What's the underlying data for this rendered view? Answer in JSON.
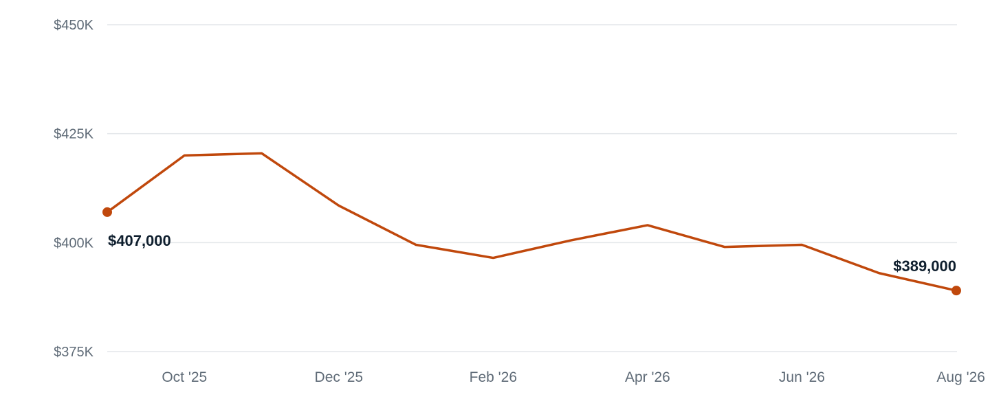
{
  "chart_data": {
    "type": "line",
    "x": [
      "Sep '25",
      "Oct '25",
      "Nov '25",
      "Dec '25",
      "Jan '26",
      "Feb '26",
      "Mar '26",
      "Apr '26",
      "May '26",
      "Jun '26",
      "Jul '26",
      "Aug '26"
    ],
    "x_tick_labels": [
      "Oct '25",
      "Dec '25",
      "Feb '26",
      "Apr '26",
      "Jun '26",
      "Aug '26"
    ],
    "series": [
      {
        "color": "#c0480c",
        "values": [
          407000,
          420000,
          420500,
          408500,
          399500,
          396500,
          400500,
          404000,
          399000,
          399500,
          393000,
          389000
        ]
      }
    ],
    "data_labels": [
      {
        "x": "Sep '25",
        "text": "$407,000"
      },
      {
        "x": "Aug '26",
        "text": "$389,000"
      }
    ],
    "y_ticks": [
      375000,
      400000,
      425000,
      450000
    ],
    "y_tick_labels": [
      "$375K",
      "$400K",
      "$425K",
      "$450K"
    ],
    "ylim": [
      375000,
      450000
    ],
    "grid": true,
    "legend": "none",
    "title": "",
    "xlabel": "",
    "ylabel": ""
  }
}
